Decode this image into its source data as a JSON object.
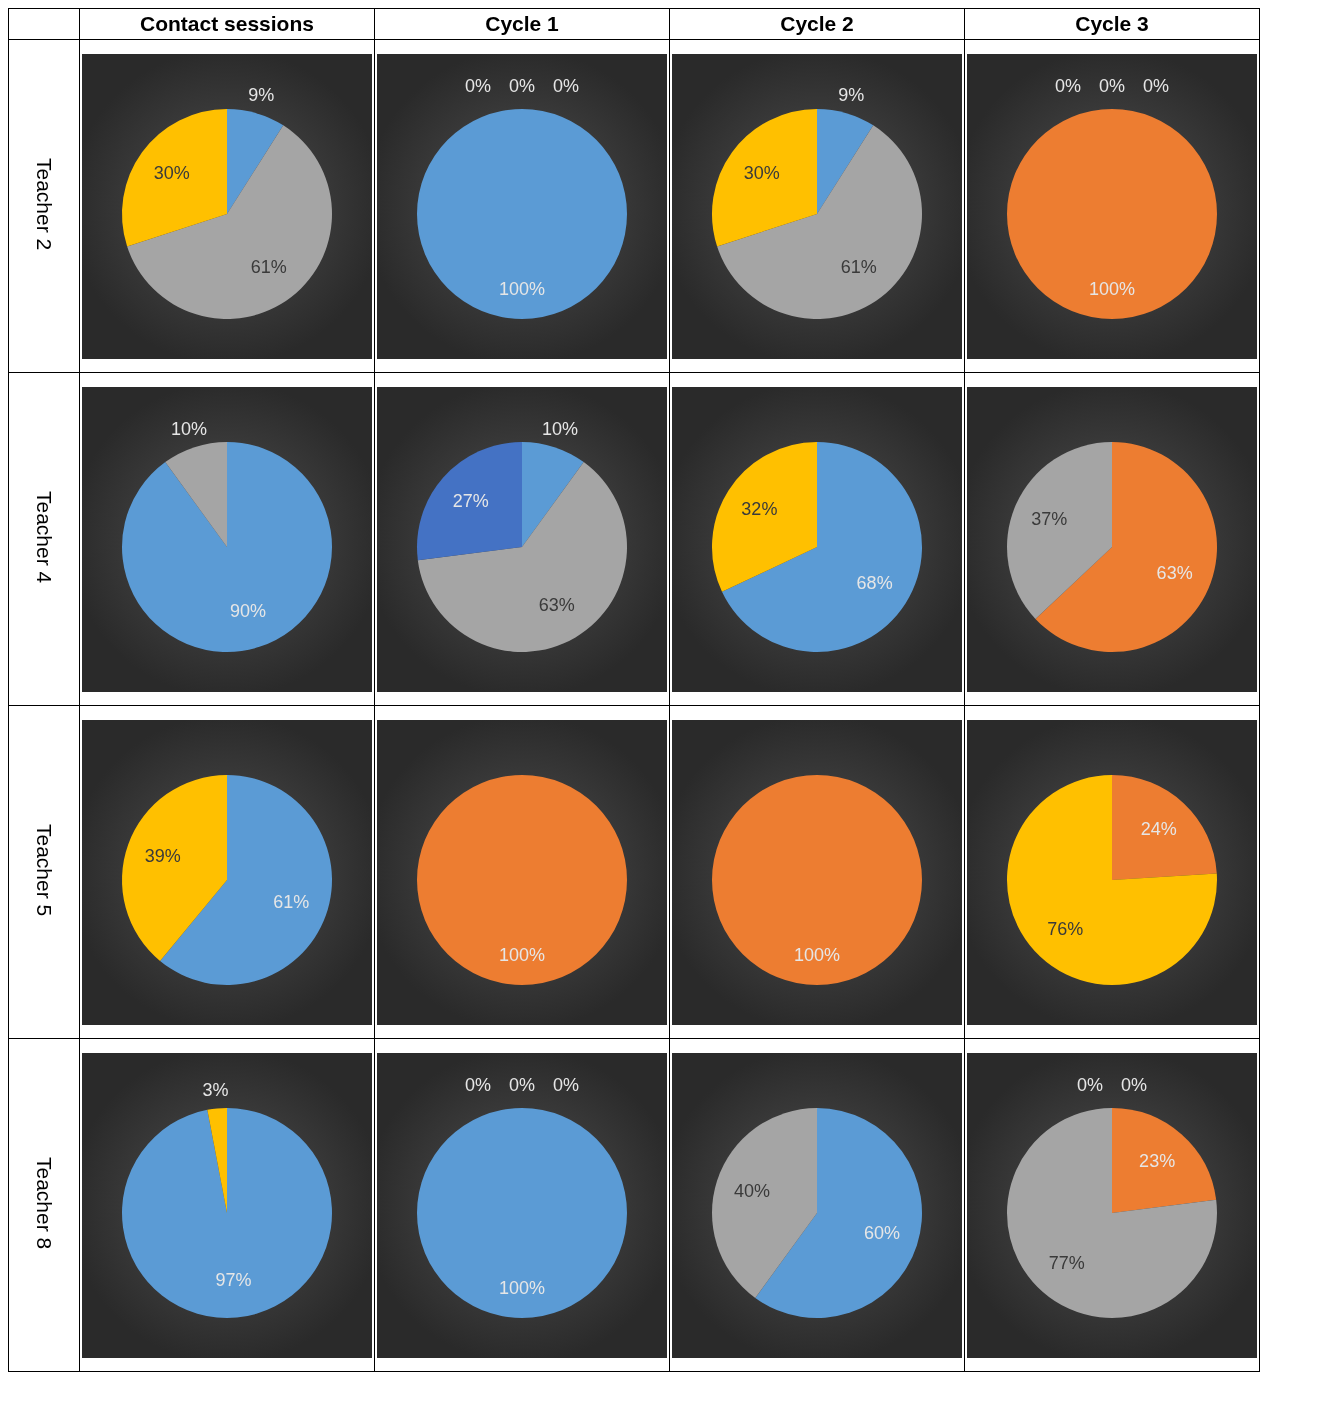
{
  "chart_data": [
    {
      "type": "pie",
      "title": "Contact sessions",
      "ylabel": "Teacher 2",
      "categories": [
        null,
        null,
        null
      ],
      "values": [
        9,
        61,
        30
      ],
      "colors": [
        "#5b9bd5",
        "#a5a5a5",
        "#ffc000"
      ],
      "value_labels": [
        "9%",
        "61%",
        "30%"
      ]
    },
    {
      "type": "pie",
      "title": "Cycle 1",
      "categories": [
        null,
        null,
        null,
        null
      ],
      "values": [
        100,
        0,
        0,
        0
      ],
      "colors": [
        "#5b9bd5",
        "#ed7d31",
        "#a5a5a5",
        "#ffc000"
      ],
      "value_labels": [
        "100%",
        "0%",
        "0%",
        "0%"
      ]
    },
    {
      "type": "pie",
      "title": "Cycle 2",
      "categories": [
        null,
        null,
        null
      ],
      "values": [
        9,
        61,
        30
      ],
      "colors": [
        "#5b9bd5",
        "#a5a5a5",
        "#ffc000"
      ],
      "value_labels": [
        "9%",
        "61%",
        "30%"
      ]
    },
    {
      "type": "pie",
      "title": "Cycle 3",
      "categories": [
        null,
        null,
        null,
        null
      ],
      "values": [
        0,
        100,
        0,
        0
      ],
      "colors": [
        "#5b9bd5",
        "#ed7d31",
        "#a5a5a5",
        "#ffc000"
      ],
      "value_labels": [
        "0%",
        "100%",
        "0%",
        "0%"
      ]
    },
    {
      "type": "pie",
      "ylabel": "Teacher 4",
      "categories": [
        null,
        null
      ],
      "values": [
        90,
        10
      ],
      "colors": [
        "#5b9bd5",
        "#a5a5a5"
      ],
      "value_labels": [
        "90%",
        "10%"
      ]
    },
    {
      "type": "pie",
      "categories": [
        null,
        null,
        null
      ],
      "values": [
        10,
        63,
        27
      ],
      "colors": [
        "#5b9bd5",
        "#a5a5a5",
        "#4472c4"
      ],
      "value_labels": [
        "10%",
        "63%",
        "27%"
      ]
    },
    {
      "type": "pie",
      "categories": [
        null,
        null
      ],
      "values": [
        68,
        32
      ],
      "colors": [
        "#5b9bd5",
        "#ffc000"
      ],
      "value_labels": [
        "68%",
        "32%"
      ]
    },
    {
      "type": "pie",
      "categories": [
        null,
        null
      ],
      "values": [
        63,
        37
      ],
      "colors": [
        "#ed7d31",
        "#a5a5a5"
      ],
      "value_labels": [
        "63%",
        "37%"
      ]
    },
    {
      "type": "pie",
      "ylabel": "Teacher 5",
      "categories": [
        null,
        null
      ],
      "values": [
        61,
        39
      ],
      "colors": [
        "#5b9bd5",
        "#ffc000"
      ],
      "value_labels": [
        "61%",
        "39%"
      ]
    },
    {
      "type": "pie",
      "categories": [
        null
      ],
      "values": [
        100
      ],
      "colors": [
        "#ed7d31"
      ],
      "value_labels": [
        "100%"
      ]
    },
    {
      "type": "pie",
      "categories": [
        null
      ],
      "values": [
        100
      ],
      "colors": [
        "#ed7d31"
      ],
      "value_labels": [
        "100%"
      ]
    },
    {
      "type": "pie",
      "categories": [
        null,
        null
      ],
      "values": [
        24,
        76
      ],
      "colors": [
        "#ed7d31",
        "#ffc000"
      ],
      "value_labels": [
        "24%",
        "76%"
      ]
    },
    {
      "type": "pie",
      "ylabel": "Teacher 8",
      "categories": [
        null,
        null
      ],
      "values": [
        97,
        3
      ],
      "colors": [
        "#5b9bd5",
        "#ffc000"
      ],
      "value_labels": [
        "97%",
        "3%"
      ]
    },
    {
      "type": "pie",
      "categories": [
        null,
        null,
        null,
        null
      ],
      "values": [
        100,
        0,
        0,
        0
      ],
      "colors": [
        "#5b9bd5",
        "#ed7d31",
        "#a5a5a5",
        "#ffc000"
      ],
      "value_labels": [
        "100%",
        "0%",
        "0%",
        "0%"
      ]
    },
    {
      "type": "pie",
      "categories": [
        null,
        null
      ],
      "values": [
        60,
        40
      ],
      "colors": [
        "#5b9bd5",
        "#a5a5a5"
      ],
      "value_labels": [
        "60%",
        "40%"
      ]
    },
    {
      "type": "pie",
      "categories": [
        null,
        null,
        null,
        null
      ],
      "values": [
        0,
        23,
        77,
        0
      ],
      "colors": [
        "#5b9bd5",
        "#ed7d31",
        "#a5a5a5",
        "#ffc000"
      ],
      "value_labels": [
        "0%",
        "23%",
        "77%",
        "0%"
      ]
    }
  ]
}
